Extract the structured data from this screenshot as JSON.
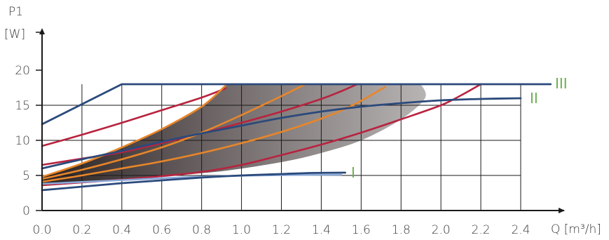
{
  "chart_data": {
    "type": "line",
    "title": "",
    "xlabel": "Q [m³/h]",
    "ylabel_top": "P1",
    "ylabel_unit": "[W]",
    "xlim": [
      0,
      2.6
    ],
    "ylim": [
      0,
      25
    ],
    "x_ticks": [
      "0.0",
      "0.2",
      "0.4",
      "0.6",
      "0.8",
      "1.0",
      "1.2",
      "1.4",
      "1.6",
      "1.8",
      "2.0",
      "2.2",
      "2.4"
    ],
    "y_ticks": [
      "0",
      "5",
      "10",
      "15",
      "20"
    ],
    "grid": true,
    "colors": {
      "speed_curve": "#2b4a7c",
      "red_curve": "#b8233f",
      "orange_curve": "#e8862a",
      "light_blue": "#8aa9d8",
      "label": "#6ab04c",
      "grid": "#1a1a1a",
      "band_dark": "#2a2222",
      "band_light": "#b8b4b4"
    },
    "speed_curves": [
      {
        "label": "III",
        "points": [
          [
            0,
            12.3
          ],
          [
            0.4,
            18
          ],
          [
            2.55,
            18
          ]
        ]
      },
      {
        "label": "II",
        "points": [
          [
            0,
            6
          ],
          [
            0.2,
            7.3
          ],
          [
            0.4,
            8.5
          ],
          [
            0.6,
            9.8
          ],
          [
            0.8,
            11
          ],
          [
            1.0,
            12.1
          ],
          [
            1.2,
            13.2
          ],
          [
            1.4,
            14.1
          ],
          [
            1.6,
            14.8
          ],
          [
            1.8,
            15.3
          ],
          [
            2.0,
            15.7
          ],
          [
            2.2,
            15.9
          ],
          [
            2.4,
            16
          ]
        ]
      },
      {
        "label": "I",
        "points": [
          [
            0,
            2.9
          ],
          [
            0.2,
            3.4
          ],
          [
            0.4,
            3.9
          ],
          [
            0.6,
            4.3
          ],
          [
            0.8,
            4.7
          ],
          [
            1.0,
            5.0
          ],
          [
            1.2,
            5.2
          ],
          [
            1.35,
            5.35
          ],
          [
            1.52,
            5.4
          ]
        ]
      }
    ],
    "lower_speed_i": {
      "points": [
        [
          0,
          3.8
        ],
        [
          0.3,
          4.2
        ],
        [
          0.6,
          4.6
        ],
        [
          0.9,
          4.9
        ],
        [
          1.2,
          5.05
        ],
        [
          1.5,
          5.1
        ]
      ]
    },
    "red_curves": [
      {
        "points": [
          [
            0,
            9.2
          ],
          [
            0.2,
            10.8
          ],
          [
            0.4,
            12.5
          ],
          [
            0.6,
            14.3
          ],
          [
            0.8,
            16.1
          ],
          [
            0.92,
            17.4
          ]
        ]
      },
      {
        "points": [
          [
            0,
            6.5
          ],
          [
            0.2,
            7.4
          ],
          [
            0.4,
            8.3
          ],
          [
            0.6,
            9.6
          ],
          [
            0.8,
            11.0
          ],
          [
            1.0,
            12.5
          ],
          [
            1.2,
            14.1
          ],
          [
            1.4,
            15.9
          ],
          [
            1.5,
            17.0
          ],
          [
            1.58,
            18
          ]
        ]
      },
      {
        "points": [
          [
            0,
            3.6
          ],
          [
            0.2,
            4.0
          ],
          [
            0.4,
            4.4
          ],
          [
            0.6,
            4.9
          ],
          [
            0.8,
            5.5
          ],
          [
            1.0,
            6.5
          ],
          [
            1.2,
            7.9
          ],
          [
            1.4,
            9.4
          ],
          [
            1.6,
            11.1
          ],
          [
            1.8,
            13.0
          ],
          [
            2.0,
            15.0
          ],
          [
            2.1,
            16.4
          ],
          [
            2.2,
            18
          ]
        ]
      }
    ],
    "orange_curves": [
      {
        "points": [
          [
            0,
            4.8
          ],
          [
            0.2,
            6.7
          ],
          [
            0.4,
            9.0
          ],
          [
            0.6,
            11.6
          ],
          [
            0.8,
            14.8
          ],
          [
            0.92,
            17.8
          ]
        ]
      },
      {
        "points": [
          [
            0,
            4.5
          ],
          [
            0.2,
            5.8
          ],
          [
            0.4,
            7.3
          ],
          [
            0.6,
            9.0
          ],
          [
            0.8,
            11.1
          ],
          [
            1.0,
            13.6
          ],
          [
            1.2,
            16.3
          ],
          [
            1.32,
            18
          ]
        ]
      },
      {
        "points": [
          [
            0,
            4.1
          ],
          [
            0.2,
            5.0
          ],
          [
            0.4,
            6.0
          ],
          [
            0.6,
            7.0
          ],
          [
            0.8,
            8.2
          ],
          [
            1.0,
            9.6
          ],
          [
            1.2,
            11.2
          ],
          [
            1.4,
            13.1
          ],
          [
            1.55,
            14.9
          ],
          [
            1.72,
            17.6
          ]
        ]
      }
    ],
    "band": {
      "upper": [
        [
          0,
          4.9
        ],
        [
          0.2,
          6.8
        ],
        [
          0.4,
          9.1
        ],
        [
          0.6,
          11.7
        ],
        [
          0.8,
          14.9
        ],
        [
          0.88,
          16.7
        ],
        [
          0.92,
          18
        ]
      ],
      "lower": [
        [
          0,
          3.8
        ],
        [
          0.3,
          4.3
        ],
        [
          0.6,
          4.9
        ],
        [
          0.9,
          5.6
        ],
        [
          1.2,
          6.9
        ],
        [
          1.4,
          8.2
        ],
        [
          1.6,
          10.0
        ],
        [
          1.8,
          13.0
        ],
        [
          1.92,
          16.0
        ],
        [
          1.9,
          18
        ]
      ]
    }
  }
}
